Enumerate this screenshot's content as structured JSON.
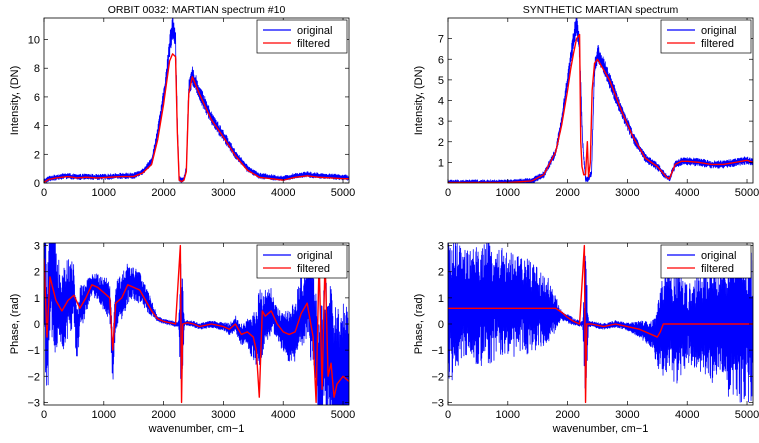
{
  "chart_data": [
    {
      "type": "line",
      "title": "ORBIT 0032: MARTIAN spectrum #10",
      "xlabel": "",
      "ylabel": "Intensity, (DN)",
      "xlim": [
        0,
        5100
      ],
      "ylim": [
        0,
        11.5
      ],
      "xticks": [
        0,
        1000,
        2000,
        3000,
        4000,
        5000
      ],
      "yticks": [
        0,
        2,
        4,
        6,
        8,
        10
      ],
      "grid": false,
      "legend": "top-right",
      "series": [
        {
          "name": "original",
          "color": "#0000ff",
          "noise": 0.55,
          "x": [
            0,
            80,
            200,
            400,
            550,
            700,
            900,
            1100,
            1300,
            1500,
            1650,
            1800,
            1900,
            2000,
            2050,
            2100,
            2150,
            2200,
            2230,
            2260,
            2300,
            2340,
            2380,
            2420,
            2480,
            2600,
            2800,
            3000,
            3200,
            3400,
            3600,
            3800,
            4000,
            4200,
            4400,
            4600,
            4800,
            5000,
            5100
          ],
          "y": [
            0.1,
            0.3,
            0.4,
            0.5,
            0.4,
            0.45,
            0.4,
            0.45,
            0.5,
            0.5,
            0.8,
            1.5,
            3.5,
            6.0,
            7.5,
            9.5,
            11.0,
            10.0,
            4.0,
            0.3,
            0.2,
            0.3,
            1.0,
            6.5,
            7.5,
            6.3,
            4.5,
            3.3,
            2.0,
            1.0,
            0.5,
            0.4,
            0.3,
            0.5,
            0.6,
            0.5,
            0.45,
            0.4,
            0.35
          ]
        },
        {
          "name": "filtered",
          "color": "#ff0000",
          "noise": 0,
          "x": [
            0,
            80,
            200,
            400,
            550,
            700,
            900,
            1100,
            1300,
            1500,
            1650,
            1800,
            1900,
            2000,
            2050,
            2100,
            2150,
            2200,
            2230,
            2260,
            2300,
            2340,
            2380,
            2420,
            2480,
            2600,
            2800,
            3000,
            3200,
            3400,
            3600,
            3800,
            4000,
            4200,
            4400,
            4600,
            4800,
            5000,
            5100
          ],
          "y": [
            0.05,
            0.25,
            0.35,
            0.45,
            0.35,
            0.4,
            0.35,
            0.4,
            0.45,
            0.45,
            0.7,
            1.3,
            3.0,
            5.5,
            7.0,
            8.5,
            9.0,
            8.8,
            3.5,
            0.2,
            0.1,
            0.2,
            0.8,
            6.2,
            7.4,
            6.2,
            4.4,
            3.2,
            1.9,
            0.9,
            0.4,
            0.3,
            0.2,
            0.4,
            0.5,
            0.4,
            0.35,
            0.3,
            0.3
          ]
        }
      ]
    },
    {
      "type": "line",
      "title": "SYNTHETIC MARTIAN spectrum",
      "xlabel": "",
      "ylabel": "Intensity, (DN)",
      "xlim": [
        0,
        5100
      ],
      "ylim": [
        0,
        8
      ],
      "xticks": [
        0,
        1000,
        2000,
        3000,
        4000,
        5000
      ],
      "yticks": [
        1,
        2,
        3,
        4,
        5,
        6,
        7
      ],
      "grid": false,
      "legend": "top-right",
      "series": [
        {
          "name": "original",
          "color": "#0000ff",
          "noise": 0.45,
          "x": [
            0,
            1000,
            1400,
            1600,
            1800,
            1900,
            2000,
            2100,
            2150,
            2200,
            2250,
            2300,
            2350,
            2400,
            2450,
            2500,
            2700,
            2900,
            3100,
            3300,
            3500,
            3650,
            3700,
            3800,
            3900,
            4000,
            4200,
            4400,
            4600,
            4800,
            5000,
            5100
          ],
          "y": [
            0.02,
            0.02,
            0.1,
            0.4,
            1.5,
            3.0,
            5.0,
            7.0,
            7.8,
            6.5,
            2.0,
            0.2,
            0.2,
            0.5,
            5.5,
            6.3,
            5.0,
            3.5,
            2.2,
            1.2,
            0.8,
            0.3,
            0.2,
            0.9,
            1.05,
            1.05,
            1.0,
            0.9,
            0.9,
            1.0,
            1.1,
            1.0
          ]
        },
        {
          "name": "filtered",
          "color": "#ff0000",
          "noise": 0,
          "x": [
            0,
            1000,
            1400,
            1600,
            1800,
            1900,
            2000,
            2050,
            2100,
            2150,
            2200,
            2220,
            2240,
            2270,
            2300,
            2330,
            2350,
            2380,
            2410,
            2450,
            2500,
            2700,
            2900,
            3100,
            3300,
            3500,
            3650,
            3700,
            3800,
            3900,
            4000,
            4200,
            4400,
            4600,
            4800,
            5000,
            5100
          ],
          "y": [
            0.02,
            0.02,
            0.1,
            0.4,
            1.5,
            2.8,
            4.5,
            5.5,
            6.3,
            7.0,
            7.2,
            2.0,
            0.8,
            0.4,
            0.4,
            2.0,
            0.3,
            1.0,
            4.5,
            5.8,
            6.0,
            5.0,
            3.5,
            2.2,
            1.2,
            0.8,
            0.3,
            0.2,
            0.9,
            1.05,
            1.05,
            1.0,
            0.9,
            0.9,
            1.0,
            1.1,
            1.0
          ]
        }
      ]
    },
    {
      "type": "line",
      "title": "",
      "xlabel": "wavenumber, cm−1",
      "ylabel": "Phase, (rad)",
      "xlim": [
        0,
        5100
      ],
      "ylim": [
        -3.1,
        3.1
      ],
      "xticks": [
        0,
        1000,
        2000,
        3000,
        4000,
        5000
      ],
      "yticks": [
        -3,
        -2,
        -1,
        0,
        1,
        2,
        3
      ],
      "grid": false,
      "legend": "top-right",
      "series": [
        {
          "name": "original",
          "color": "#0000ff",
          "noise": 0,
          "x": [
            0,
            50,
            100,
            200,
            300,
            400,
            500,
            550,
            600,
            700,
            800,
            900,
            1000,
            1100,
            1150,
            1200,
            1300,
            1400,
            1500,
            1600,
            1700,
            1800,
            1900,
            2000,
            2100,
            2200,
            2300,
            2400,
            2500,
            2600,
            2800,
            3000,
            3100,
            3200,
            3300,
            3400,
            3500,
            3600,
            3700,
            3800,
            3900,
            4000,
            4100,
            4200,
            4300,
            4400,
            4500,
            4600,
            4700,
            4800,
            4900,
            5000,
            5100
          ],
          "y": [
            2.8,
            -1.0,
            2.5,
            1.0,
            0.5,
            1.0,
            1.2,
            -0.5,
            0.5,
            1.0,
            1.5,
            1.4,
            1.2,
            1.0,
            -1.5,
            0.8,
            1.0,
            1.6,
            1.5,
            1.4,
            1.0,
            0.6,
            0.2,
            0.1,
            0.05,
            0.0,
            0.0,
            0.05,
            0.0,
            -0.1,
            0.0,
            -0.1,
            -0.2,
            0.0,
            -0.4,
            -0.3,
            -0.5,
            -0.2,
            0.3,
            0.5,
            0.0,
            -0.3,
            -0.5,
            -0.3,
            0.5,
            1.0,
            0.0,
            -2.0,
            -1.0,
            -1.5,
            -2.5,
            -2.0,
            -2.2
          ],
          "noise_profile": [
            [
              0,
              3.0
            ],
            [
              400,
              1.5
            ],
            [
              800,
              0.4
            ],
            [
              1200,
              1.0
            ],
            [
              1700,
              0.5
            ],
            [
              1900,
              0.1
            ],
            [
              2250,
              0.1
            ],
            [
              2300,
              3.1
            ],
            [
              2350,
              0.1
            ],
            [
              3000,
              0.15
            ],
            [
              3400,
              0.5
            ],
            [
              3600,
              1.5
            ],
            [
              3900,
              0.6
            ],
            [
              4200,
              1.2
            ],
            [
              4500,
              2.0
            ],
            [
              4800,
              3.0
            ],
            [
              5100,
              3.0
            ]
          ]
        },
        {
          "name": "filtered",
          "color": "#ff0000",
          "noise": 0,
          "x": [
            0,
            50,
            100,
            200,
            300,
            400,
            500,
            600,
            700,
            800,
            900,
            1000,
            1100,
            1150,
            1200,
            1300,
            1400,
            1500,
            1600,
            1700,
            1800,
            1900,
            2000,
            2100,
            2200,
            2280,
            2300,
            2320,
            2400,
            2500,
            2600,
            2800,
            3000,
            3100,
            3200,
            3300,
            3400,
            3500,
            3550,
            3600,
            3650,
            3700,
            3800,
            3900,
            4000,
            4100,
            4200,
            4300,
            4400,
            4500,
            4550,
            4600,
            4650,
            4700,
            4750,
            4800,
            4850,
            4900,
            5000,
            5100
          ],
          "y": [
            2.5,
            -0.5,
            1.8,
            0.9,
            0.5,
            0.9,
            1.1,
            0.6,
            1.0,
            1.5,
            1.4,
            1.2,
            1.0,
            -1.0,
            0.8,
            1.0,
            1.5,
            1.4,
            1.3,
            0.9,
            0.5,
            0.2,
            0.1,
            0.05,
            0.0,
            3.0,
            -3.0,
            0.0,
            0.05,
            0.0,
            -0.1,
            0.0,
            -0.1,
            -0.2,
            0.0,
            -0.4,
            -0.3,
            -0.5,
            -1.0,
            -2.8,
            0.5,
            0.3,
            0.5,
            0.0,
            -0.3,
            -0.4,
            -0.3,
            0.4,
            0.8,
            -0.5,
            -3.0,
            2.5,
            -2.5,
            2.5,
            -2.0,
            -1.5,
            -2.8,
            -2.3,
            -2.0,
            -2.2
          ]
        }
      ]
    },
    {
      "type": "line",
      "title": "",
      "xlabel": "wavenumber, cm−1",
      "ylabel": "Phase, (rad)",
      "xlim": [
        0,
        5100
      ],
      "ylim": [
        -3.1,
        3.1
      ],
      "xticks": [
        0,
        1000,
        2000,
        3000,
        4000,
        5000
      ],
      "yticks": [
        -3,
        -2,
        -1,
        0,
        1,
        2,
        3
      ],
      "grid": false,
      "legend": "top-right",
      "series": [
        {
          "name": "original",
          "color": "#0000ff",
          "noise": 0,
          "x": [
            0,
            100,
            300,
            500,
            700,
            900,
            1100,
            1300,
            1500,
            1700,
            1900,
            2100,
            2200,
            2300,
            2400,
            2600,
            2800,
            3000,
            3200,
            3400,
            3500,
            3600,
            3800,
            4000,
            4200,
            4400,
            4600,
            4800,
            5000,
            5100
          ],
          "y": [
            0.6,
            0.6,
            0.8,
            0.7,
            0.8,
            0.9,
            0.7,
            0.7,
            0.6,
            0.5,
            0.3,
            0.1,
            0.0,
            0.0,
            0.0,
            -0.1,
            0.0,
            -0.1,
            -0.2,
            -0.4,
            -0.5,
            0.0,
            0.0,
            0.0,
            0.0,
            0.0,
            0.0,
            0.0,
            0.0,
            0.0
          ],
          "noise_profile": [
            [
              0,
              3.0
            ],
            [
              300,
              2.0
            ],
            [
              600,
              2.5
            ],
            [
              1000,
              2.0
            ],
            [
              1400,
              1.8
            ],
            [
              1700,
              1.2
            ],
            [
              1900,
              0.2
            ],
            [
              2250,
              0.1
            ],
            [
              2300,
              3.1
            ],
            [
              2350,
              0.1
            ],
            [
              3000,
              0.15
            ],
            [
              3400,
              0.5
            ],
            [
              3600,
              2.0
            ],
            [
              3800,
              2.5
            ],
            [
              4000,
              1.5
            ],
            [
              4300,
              2.0
            ],
            [
              4500,
              2.5
            ],
            [
              4800,
              3.0
            ],
            [
              5100,
              3.0
            ]
          ]
        },
        {
          "name": "filtered",
          "color": "#ff0000",
          "noise": 0,
          "x": [
            0,
            1800,
            1900,
            2000,
            2100,
            2200,
            2280,
            2300,
            2320,
            2400,
            2600,
            2800,
            3000,
            3200,
            3400,
            3500,
            3550,
            3600,
            3700,
            5100
          ],
          "y": [
            0.6,
            0.6,
            0.45,
            0.25,
            0.1,
            0.0,
            3.0,
            -3.0,
            0.0,
            0.0,
            -0.1,
            0.0,
            -0.1,
            -0.2,
            -0.4,
            -0.5,
            -0.3,
            0.0,
            0.0,
            0.0
          ]
        }
      ]
    }
  ]
}
